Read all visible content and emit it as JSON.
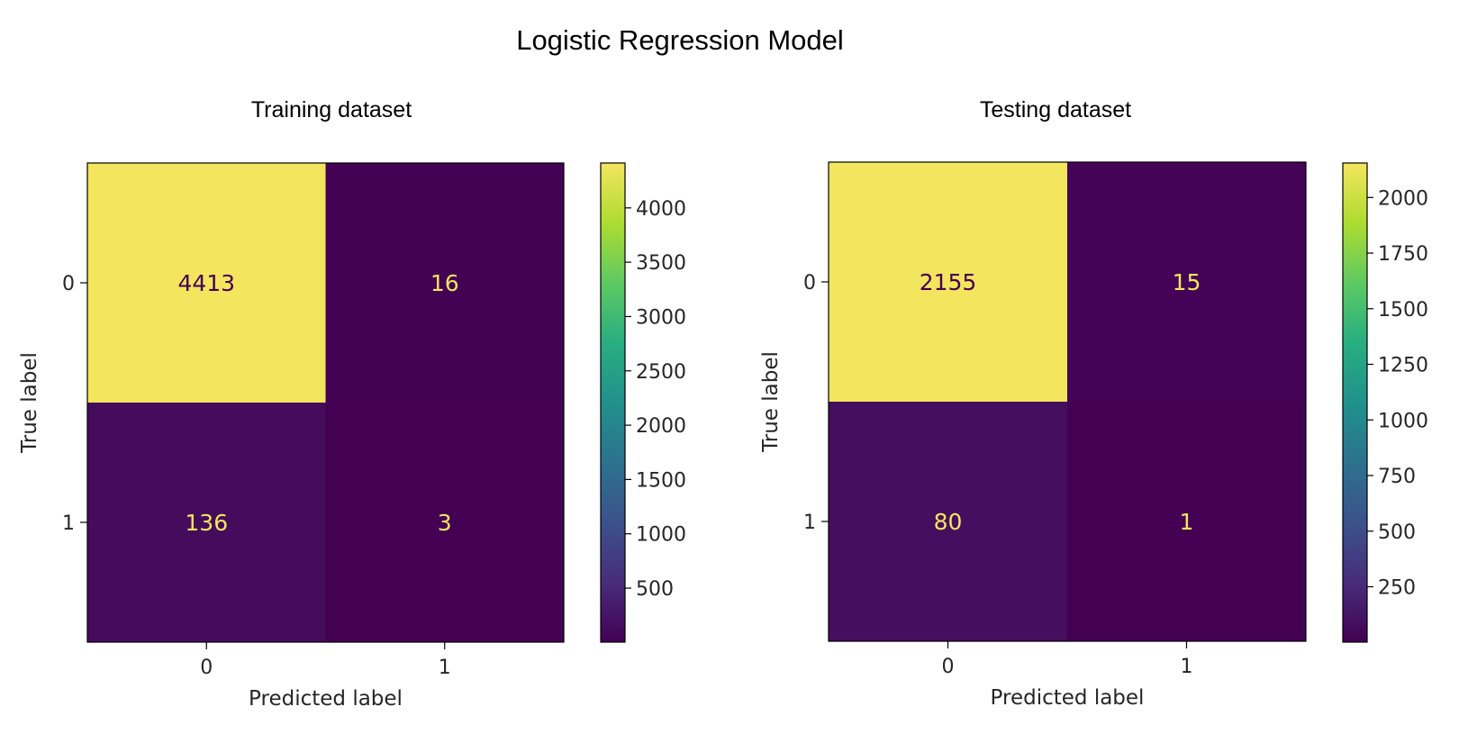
{
  "title": "Logistic Regression Model",
  "chart_data": [
    {
      "type": "heatmap",
      "title": "Training dataset",
      "xlabel": "Predicted label",
      "ylabel": "True label",
      "x_ticks": [
        "0",
        "1"
      ],
      "y_ticks": [
        "0",
        "1"
      ],
      "matrix": [
        [
          4413,
          16
        ],
        [
          136,
          3
        ]
      ],
      "colorbar": {
        "min": 3,
        "max": 4413,
        "ticks": [
          500,
          1000,
          1500,
          2000,
          2500,
          3000,
          3500,
          4000
        ]
      },
      "colormap": "viridis"
    },
    {
      "type": "heatmap",
      "title": "Testing dataset",
      "xlabel": "Predicted label",
      "ylabel": "True label",
      "x_ticks": [
        "0",
        "1"
      ],
      "y_ticks": [
        "0",
        "1"
      ],
      "matrix": [
        [
          2155,
          15
        ],
        [
          80,
          1
        ]
      ],
      "colorbar": {
        "min": 1,
        "max": 2155,
        "ticks": [
          250,
          500,
          750,
          1000,
          1250,
          1500,
          1750,
          2000
        ]
      },
      "colormap": "viridis"
    }
  ]
}
